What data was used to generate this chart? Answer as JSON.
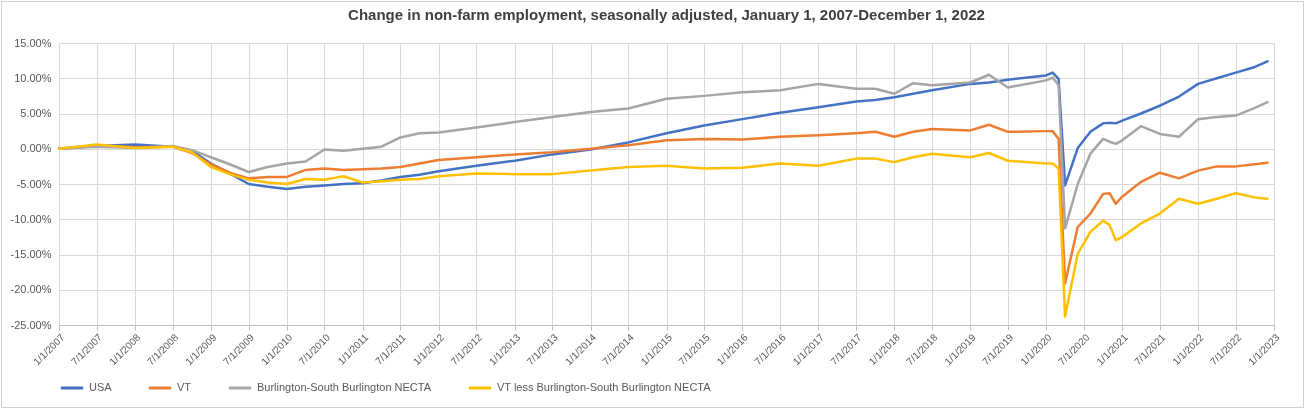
{
  "chart_data": {
    "type": "line",
    "title": "Change in non-farm employment, seasonally adjusted, January 1, 2007-December 1, 2022",
    "x": [
      "2007-01",
      "2007-07",
      "2008-01",
      "2008-07",
      "2008-10",
      "2009-01",
      "2009-04",
      "2009-07",
      "2009-10",
      "2010-01",
      "2010-04",
      "2010-07",
      "2010-10",
      "2011-01",
      "2011-04",
      "2011-07",
      "2011-10",
      "2012-01",
      "2012-07",
      "2013-01",
      "2013-07",
      "2014-01",
      "2014-07",
      "2015-01",
      "2015-07",
      "2016-01",
      "2016-07",
      "2017-01",
      "2017-07",
      "2017-10",
      "2018-01",
      "2018-04",
      "2018-07",
      "2019-01",
      "2019-04",
      "2019-07",
      "2020-01",
      "2020-02",
      "2020-03",
      "2020-04",
      "2020-06",
      "2020-08",
      "2020-10",
      "2020-11",
      "2020-12",
      "2021-01",
      "2021-04",
      "2021-07",
      "2021-10",
      "2022-01",
      "2022-04",
      "2022-07",
      "2022-10",
      "2022-12"
    ],
    "series": [
      {
        "name": "USA",
        "color": "#4472c4",
        "values": [
          0,
          0.4,
          0.6,
          0.3,
          -0.3,
          -2.1,
          -3.5,
          -5.0,
          -5.4,
          -5.7,
          -5.4,
          -5.2,
          -5.0,
          -4.9,
          -4.5,
          -4.0,
          -3.7,
          -3.2,
          -2.4,
          -1.7,
          -0.8,
          -0.1,
          0.9,
          2.2,
          3.3,
          4.2,
          5.1,
          5.9,
          6.7,
          6.9,
          7.3,
          7.8,
          8.3,
          9.2,
          9.4,
          9.8,
          10.4,
          10.8,
          9.9,
          -5.2,
          0.1,
          2.4,
          3.6,
          3.7,
          3.6,
          4.0,
          5.0,
          6.1,
          7.4,
          9.2,
          10.0,
          10.8,
          11.6,
          12.4
        ]
      },
      {
        "name": "VT",
        "color": "#ed7d31",
        "values": [
          0,
          0.5,
          0.2,
          0.3,
          -0.6,
          -2.2,
          -3.4,
          -4.2,
          -4.0,
          -4.0,
          -3.0,
          -2.8,
          -3.0,
          -2.9,
          -2.8,
          -2.6,
          -2.1,
          -1.6,
          -1.2,
          -0.8,
          -0.5,
          0,
          0.5,
          1.2,
          1.4,
          1.3,
          1.7,
          1.9,
          2.2,
          2.4,
          1.7,
          2.4,
          2.8,
          2.6,
          3.4,
          2.4,
          2.5,
          2.5,
          1.4,
          -19.1,
          -11.1,
          -9.2,
          -6.4,
          -6.3,
          -7.8,
          -6.8,
          -4.7,
          -3.4,
          -4.2,
          -3.1,
          -2.5,
          -2.5,
          -2.2,
          -2.0
        ]
      },
      {
        "name": "Burlington-South Burlington NECTA",
        "color": "#a5a5a5",
        "values": [
          0,
          0.3,
          0.1,
          0.4,
          -0.2,
          -1.2,
          -2.2,
          -3.3,
          -2.6,
          -2.1,
          -1.8,
          -0.1,
          -0.3,
          0,
          0.3,
          1.6,
          2.2,
          2.3,
          3.0,
          3.8,
          4.5,
          5.2,
          5.7,
          7.1,
          7.5,
          8.0,
          8.3,
          9.2,
          8.5,
          8.5,
          7.8,
          9.3,
          9.0,
          9.4,
          10.5,
          8.7,
          9.7,
          10.1,
          9.0,
          -11.3,
          -5.0,
          -0.7,
          1.4,
          1.0,
          0.7,
          1.2,
          3.2,
          2.1,
          1.7,
          4.2,
          4.5,
          4.7,
          5.8,
          6.6
        ]
      },
      {
        "name": "VT less Burlington-South Burlington NECTA",
        "color": "#ffc000",
        "values": [
          0,
          0.6,
          0.1,
          0.3,
          -0.5,
          -2.6,
          -3.6,
          -4.4,
          -4.8,
          -5.0,
          -4.3,
          -4.4,
          -3.9,
          -4.8,
          -4.6,
          -4.4,
          -4.3,
          -3.9,
          -3.5,
          -3.6,
          -3.6,
          -3.1,
          -2.6,
          -2.4,
          -2.8,
          -2.7,
          -2.1,
          -2.4,
          -1.4,
          -1.4,
          -1.9,
          -1.2,
          -0.7,
          -1.2,
          -0.6,
          -1.7,
          -2.1,
          -2.1,
          -2.8,
          -23.8,
          -14.9,
          -11.8,
          -10.2,
          -10.8,
          -13.0,
          -12.5,
          -10.6,
          -9.2,
          -7.1,
          -7.8,
          -7.1,
          -6.3,
          -6.9,
          -7.1
        ]
      }
    ],
    "xlim": [
      "2007-01-01",
      "2023-01-01"
    ],
    "xticks": [
      {
        "value": "2007-01-01",
        "label": "1/1/2007"
      },
      {
        "value": "2007-07-01",
        "label": "7/1/2007"
      },
      {
        "value": "2008-01-01",
        "label": "1/1/2008"
      },
      {
        "value": "2008-07-01",
        "label": "7/1/2008"
      },
      {
        "value": "2009-01-01",
        "label": "1/1/2009"
      },
      {
        "value": "2009-07-01",
        "label": "7/1/2009"
      },
      {
        "value": "2010-01-01",
        "label": "1/1/2010"
      },
      {
        "value": "2010-07-01",
        "label": "7/1/2010"
      },
      {
        "value": "2011-01-01",
        "label": "1/1/2011"
      },
      {
        "value": "2011-07-01",
        "label": "7/1/2011"
      },
      {
        "value": "2012-01-01",
        "label": "1/1/2012"
      },
      {
        "value": "2012-07-01",
        "label": "7/1/2012"
      },
      {
        "value": "2013-01-01",
        "label": "1/1/2013"
      },
      {
        "value": "2013-07-01",
        "label": "7/1/2013"
      },
      {
        "value": "2014-01-01",
        "label": "1/1/2014"
      },
      {
        "value": "2014-07-01",
        "label": "7/1/2014"
      },
      {
        "value": "2015-01-01",
        "label": "1/1/2015"
      },
      {
        "value": "2015-07-01",
        "label": "7/1/2015"
      },
      {
        "value": "2016-01-01",
        "label": "1/1/2016"
      },
      {
        "value": "2016-07-01",
        "label": "7/1/2016"
      },
      {
        "value": "2017-01-01",
        "label": "1/1/2017"
      },
      {
        "value": "2017-07-01",
        "label": "7/1/2017"
      },
      {
        "value": "2018-01-01",
        "label": "1/1/2018"
      },
      {
        "value": "2018-07-01",
        "label": "7/1/2018"
      },
      {
        "value": "2019-01-01",
        "label": "1/1/2019"
      },
      {
        "value": "2019-07-01",
        "label": "7/1/2019"
      },
      {
        "value": "2020-01-01",
        "label": "1/1/2020"
      },
      {
        "value": "2020-07-01",
        "label": "7/1/2020"
      },
      {
        "value": "2021-01-01",
        "label": "1/1/2021"
      },
      {
        "value": "2021-07-01",
        "label": "7/1/2021"
      },
      {
        "value": "2022-01-01",
        "label": "1/1/2022"
      },
      {
        "value": "2022-07-01",
        "label": "7/1/2022"
      },
      {
        "value": "2023-01-01",
        "label": "1/1/2023"
      }
    ],
    "ylim": [
      -25,
      15
    ],
    "yticks": [
      {
        "value": -25,
        "label": "-25.00%"
      },
      {
        "value": -20,
        "label": "-20.00%"
      },
      {
        "value": -15,
        "label": "-15.00%"
      },
      {
        "value": -10,
        "label": "-10.00%"
      },
      {
        "value": -5,
        "label": "-5.00%"
      },
      {
        "value": 0,
        "label": "0.00%"
      },
      {
        "value": 5,
        "label": "5.00%"
      },
      {
        "value": 10,
        "label": "10.00%"
      },
      {
        "value": 15,
        "label": "15.00%"
      }
    ],
    "grid": true,
    "legend": "bottom",
    "marker": "none",
    "line_style": "solid"
  }
}
